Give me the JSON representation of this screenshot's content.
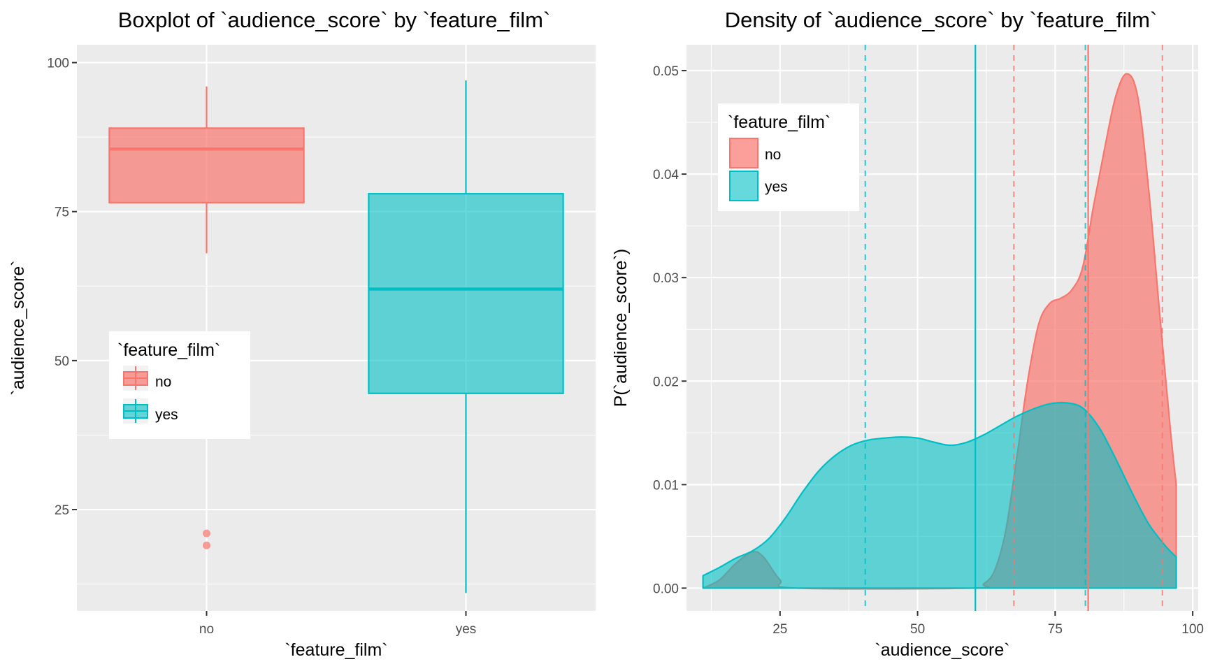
{
  "colors": {
    "no": "#F8766D",
    "yes": "#00BFC4",
    "panel": "#EBEBEB",
    "grid": "#FFFFFF"
  },
  "chart_data": [
    {
      "type": "boxplot",
      "title": "Boxplot of `audience_score` by `feature_film`",
      "xlabel": "`feature_film`",
      "ylabel": "`audience_score`",
      "ylim": [
        8,
        103
      ],
      "yticks": [
        25,
        50,
        75,
        100
      ],
      "ytick_labels": [
        "25",
        "50",
        "75",
        "100"
      ],
      "categories": [
        "no",
        "yes"
      ],
      "boxes": [
        {
          "name": "no",
          "whisker_low": 68,
          "q1": 76.5,
          "median": 85.5,
          "q3": 89,
          "whisker_high": 96,
          "outliers": [
            19,
            21
          ]
        },
        {
          "name": "yes",
          "whisker_low": 11,
          "q1": 44.5,
          "median": 62,
          "q3": 78,
          "whisker_high": 97,
          "outliers": []
        }
      ],
      "legend": {
        "title": "`feature_film`",
        "entries": [
          "no",
          "yes"
        ],
        "position": "center-left"
      }
    },
    {
      "type": "area",
      "title": "Density of `audience_score` by `feature_film`",
      "xlabel": "`audience_score`",
      "ylabel": "P(`audience_score`)",
      "xlim": [
        8,
        101
      ],
      "ylim": [
        -0.0022,
        0.0525
      ],
      "xticks": [
        25,
        50,
        75,
        100
      ],
      "xtick_labels": [
        "25",
        "50",
        "75",
        "100"
      ],
      "yticks": [
        0,
        0.01,
        0.02,
        0.03,
        0.04,
        0.05
      ],
      "ytick_labels": [
        "0.00",
        "0.01",
        "0.02",
        "0.03",
        "0.04",
        "0.05"
      ],
      "series": [
        {
          "name": "no",
          "x": [
            11,
            14,
            17,
            20,
            22,
            25,
            28,
            60,
            62,
            64,
            66,
            68,
            70,
            72,
            74,
            76,
            78,
            80,
            82,
            84,
            86,
            88,
            90,
            92,
            94,
            96,
            97
          ],
          "y": [
            0,
            0.0008,
            0.0024,
            0.0035,
            0.003,
            0.0008,
            0,
            0,
            0.0004,
            0.0017,
            0.0055,
            0.0125,
            0.02,
            0.0255,
            0.0275,
            0.028,
            0.0288,
            0.031,
            0.037,
            0.0425,
            0.0475,
            0.0497,
            0.0475,
            0.0385,
            0.0265,
            0.015,
            0.01
          ],
          "mean": 81.0,
          "mean_minus_sd": 67.5,
          "mean_plus_sd": 94.5
        },
        {
          "name": "yes",
          "x": [
            11,
            14,
            17,
            20,
            23,
            26,
            29,
            32,
            35,
            38,
            41,
            44,
            47,
            50,
            53,
            56,
            59,
            62,
            65,
            68,
            71,
            74,
            77,
            80,
            83,
            86,
            89,
            92,
            95,
            97
          ],
          "y": [
            0.0012,
            0.002,
            0.0029,
            0.0036,
            0.0048,
            0.0068,
            0.0092,
            0.0113,
            0.0128,
            0.0138,
            0.0143,
            0.0145,
            0.0146,
            0.0145,
            0.0141,
            0.0138,
            0.0141,
            0.0148,
            0.0157,
            0.0166,
            0.0173,
            0.0178,
            0.0179,
            0.0174,
            0.0155,
            0.0125,
            0.0092,
            0.0062,
            0.0041,
            0.003
          ],
          "mean": 60.5,
          "mean_minus_sd": 40.5,
          "mean_plus_sd": 80.5
        }
      ],
      "legend": {
        "title": "`feature_film`",
        "entries": [
          "no",
          "yes"
        ],
        "position": "top-left"
      }
    }
  ]
}
